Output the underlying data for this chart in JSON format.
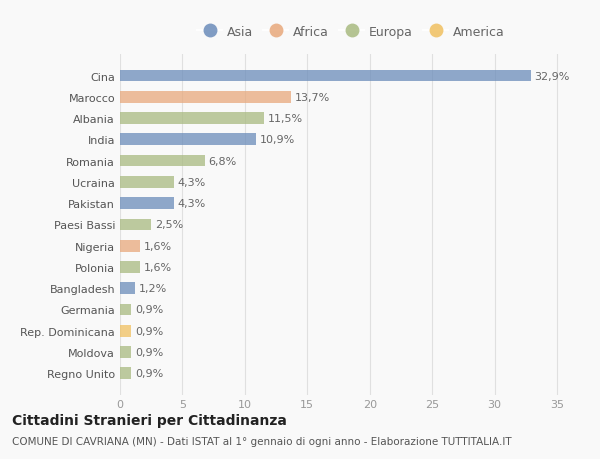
{
  "countries": [
    "Cina",
    "Marocco",
    "Albania",
    "India",
    "Romania",
    "Ucraina",
    "Pakistan",
    "Paesi Bassi",
    "Nigeria",
    "Polonia",
    "Bangladesh",
    "Germania",
    "Rep. Dominicana",
    "Moldova",
    "Regno Unito"
  ],
  "values": [
    32.9,
    13.7,
    11.5,
    10.9,
    6.8,
    4.3,
    4.3,
    2.5,
    1.6,
    1.6,
    1.2,
    0.9,
    0.9,
    0.9,
    0.9
  ],
  "labels": [
    "32,9%",
    "13,7%",
    "11,5%",
    "10,9%",
    "6,8%",
    "4,3%",
    "4,3%",
    "2,5%",
    "1,6%",
    "1,6%",
    "1,2%",
    "0,9%",
    "0,9%",
    "0,9%",
    "0,9%"
  ],
  "continents": [
    "Asia",
    "Africa",
    "Europa",
    "Asia",
    "Europa",
    "Europa",
    "Asia",
    "Europa",
    "Africa",
    "Europa",
    "Asia",
    "Europa",
    "America",
    "Europa",
    "Europa"
  ],
  "continent_colors": {
    "Asia": "#6b8cba",
    "Africa": "#e8a87c",
    "Europa": "#a8ba80",
    "America": "#f0c060"
  },
  "legend_order": [
    "Asia",
    "Africa",
    "Europa",
    "America"
  ],
  "title": "Cittadini Stranieri per Cittadinanza",
  "subtitle": "COMUNE DI CAVRIANA (MN) - Dati ISTAT al 1° gennaio di ogni anno - Elaborazione TUTTITALIA.IT",
  "xlim": [
    0,
    37
  ],
  "xticks": [
    0,
    5,
    10,
    15,
    20,
    25,
    30,
    35
  ],
  "background_color": "#f9f9f9",
  "grid_color": "#e0e0e0",
  "bar_height": 0.55,
  "label_fontsize": 8,
  "title_fontsize": 10,
  "subtitle_fontsize": 7.5,
  "tick_fontsize": 8,
  "legend_fontsize": 9
}
